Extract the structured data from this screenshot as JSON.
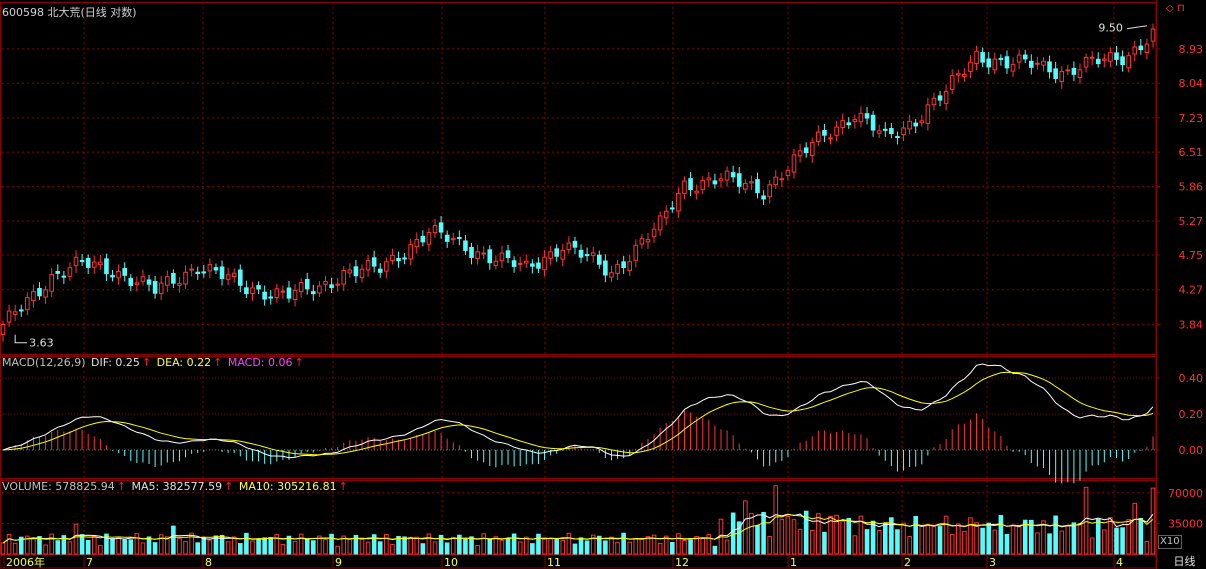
{
  "header": {
    "title": "600598 北大荒(日线 对数)",
    "macd_label": "MACD(12,26,9)",
    "dif": "DIF: 0.25",
    "dea": "DEA: 0.22",
    "macd": "MACD: 0.06",
    "volume": "VOLUME: 578825.94",
    "ma5": "MA5: 382577.59",
    "ma10": "MA10: 305216.81",
    "period_button": "日线",
    "scale_badge": "X10",
    "controls": "◇ ⊓"
  },
  "colors": {
    "up": "#ff3232",
    "down": "#54fcfc",
    "grid": "#8b0000",
    "dif": "#ffffff",
    "dea": "#ffff00",
    "axis": "#ff3030"
  },
  "chart_data": [
    {
      "type": "candlestick",
      "title": "600598 北大荒(日线 对数)",
      "scale": "log",
      "ylim": [
        3.55,
        10.0
      ],
      "yticks": [
        "3.84",
        "4.27",
        "4.75",
        "5.27",
        "5.86",
        "6.51",
        "7.23",
        "8.04",
        "8.93"
      ],
      "annotations": [
        {
          "label": "3.63",
          "type": "low"
        },
        {
          "label": "9.50",
          "type": "high"
        }
      ],
      "xticks": [
        "2006年",
        "7",
        "8",
        "9",
        "10",
        "11",
        "12",
        "1",
        "2",
        "3",
        "4"
      ],
      "anchors": {
        "note": "approximate closing-price path by trading day index (0-189)",
        "day": [
          0,
          3,
          8,
          13,
          18,
          25,
          32,
          40,
          47,
          52,
          56,
          62,
          70,
          78,
          86,
          92,
          100,
          108,
          112,
          118,
          125,
          130,
          135,
          140,
          145,
          150,
          155,
          160,
          165,
          170,
          175,
          180,
          185,
          189
        ],
        "close": [
          3.8,
          4.05,
          4.45,
          4.62,
          4.55,
          4.25,
          4.6,
          4.3,
          4.2,
          4.3,
          4.5,
          4.55,
          5.1,
          4.8,
          4.55,
          4.9,
          4.5,
          5.2,
          5.9,
          6.0,
          5.8,
          6.3,
          6.9,
          7.3,
          6.8,
          7.2,
          7.8,
          8.8,
          8.5,
          8.55,
          8.3,
          8.6,
          8.8,
          9.3
        ]
      }
    },
    {
      "type": "line",
      "title": "MACD(12,26,9)",
      "ylim": [
        -0.1,
        0.5
      ],
      "yticks": [
        "0.40",
        "0.20",
        "0.00"
      ],
      "series": [
        {
          "name": "DIF",
          "last": 0.25
        },
        {
          "name": "DEA",
          "last": 0.22
        },
        {
          "name": "MACD",
          "last": 0.06
        }
      ]
    },
    {
      "type": "bar",
      "title": "VOLUME",
      "ylim": [
        0,
        80000
      ],
      "yticks": [
        "70000",
        "35000"
      ],
      "unit_badge": "X10",
      "series": [
        {
          "name": "VOLUME",
          "last": 578825.94
        },
        {
          "name": "MA5",
          "last": 382577.59
        },
        {
          "name": "MA10",
          "last": 305216.81
        }
      ]
    }
  ]
}
